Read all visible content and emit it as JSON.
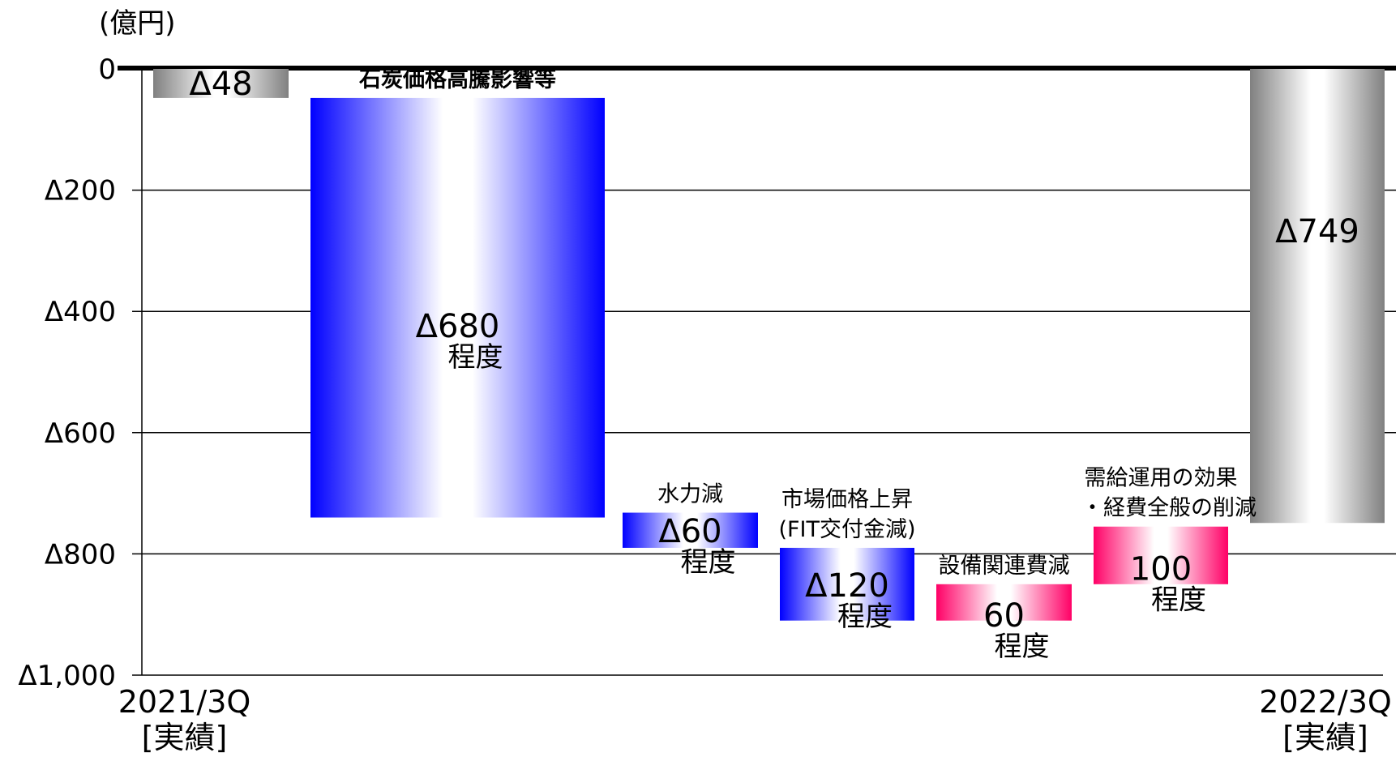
{
  "chart_data": {
    "type": "bar",
    "subtype": "waterfall",
    "unit_label": "(億円)",
    "ylim": [
      -1000,
      0
    ],
    "yticks": [
      {
        "value": 0,
        "label": "0"
      },
      {
        "value": -200,
        "label": "Δ200"
      },
      {
        "value": -400,
        "label": "Δ400"
      },
      {
        "value": -600,
        "label": "Δ600"
      },
      {
        "value": -800,
        "label": "Δ800"
      },
      {
        "value": -1000,
        "label": "Δ1,000"
      }
    ],
    "grid": true,
    "categories": [
      {
        "line1": "2021/3Q",
        "line2": "[実績]"
      },
      {
        "line1": "",
        "line2": ""
      },
      {
        "line1": "",
        "line2": ""
      },
      {
        "line1": "",
        "line2": ""
      },
      {
        "line1": "",
        "line2": ""
      },
      {
        "line1": "",
        "line2": ""
      },
      {
        "line1": "2022/3Q",
        "line2": "[実績]"
      }
    ],
    "bars": [
      {
        "kind": "total",
        "start": 0,
        "end": -48,
        "value_label": "Δ48",
        "unit_label": "",
        "annotation": [],
        "color": "#888888"
      },
      {
        "kind": "decrease",
        "start": -48,
        "end": -740,
        "value_label": "Δ680",
        "unit_label": "程度",
        "annotation": [
          "石炭価格高騰影響等"
        ],
        "annotation_bold": true,
        "color": "#0000ff"
      },
      {
        "kind": "decrease",
        "start": -732,
        "end": -790,
        "value_label": "Δ60",
        "unit_label": "程度",
        "annotation": [
          "水力減"
        ],
        "color": "#0000ff"
      },
      {
        "kind": "decrease",
        "start": -790,
        "end": -910,
        "value_label": "Δ120",
        "unit_label": "程度",
        "annotation": [
          "市場価格上昇",
          "(FIT交付金減)"
        ],
        "color": "#0000ff"
      },
      {
        "kind": "increase",
        "start": -910,
        "end": -850,
        "value_label": "60",
        "unit_label": "程度",
        "annotation": [
          "設備関連費減"
        ],
        "color": "#ff0066"
      },
      {
        "kind": "increase",
        "start": -850,
        "end": -755,
        "value_label": "100",
        "unit_label": "程度",
        "annotation": [
          "需給運用の効果",
          "・経費全般の削減"
        ],
        "color": "#ff0066"
      },
      {
        "kind": "total",
        "start": 0,
        "end": -749,
        "value_label": "Δ749",
        "unit_label": "",
        "annotation": [],
        "color": "#888888"
      }
    ]
  }
}
